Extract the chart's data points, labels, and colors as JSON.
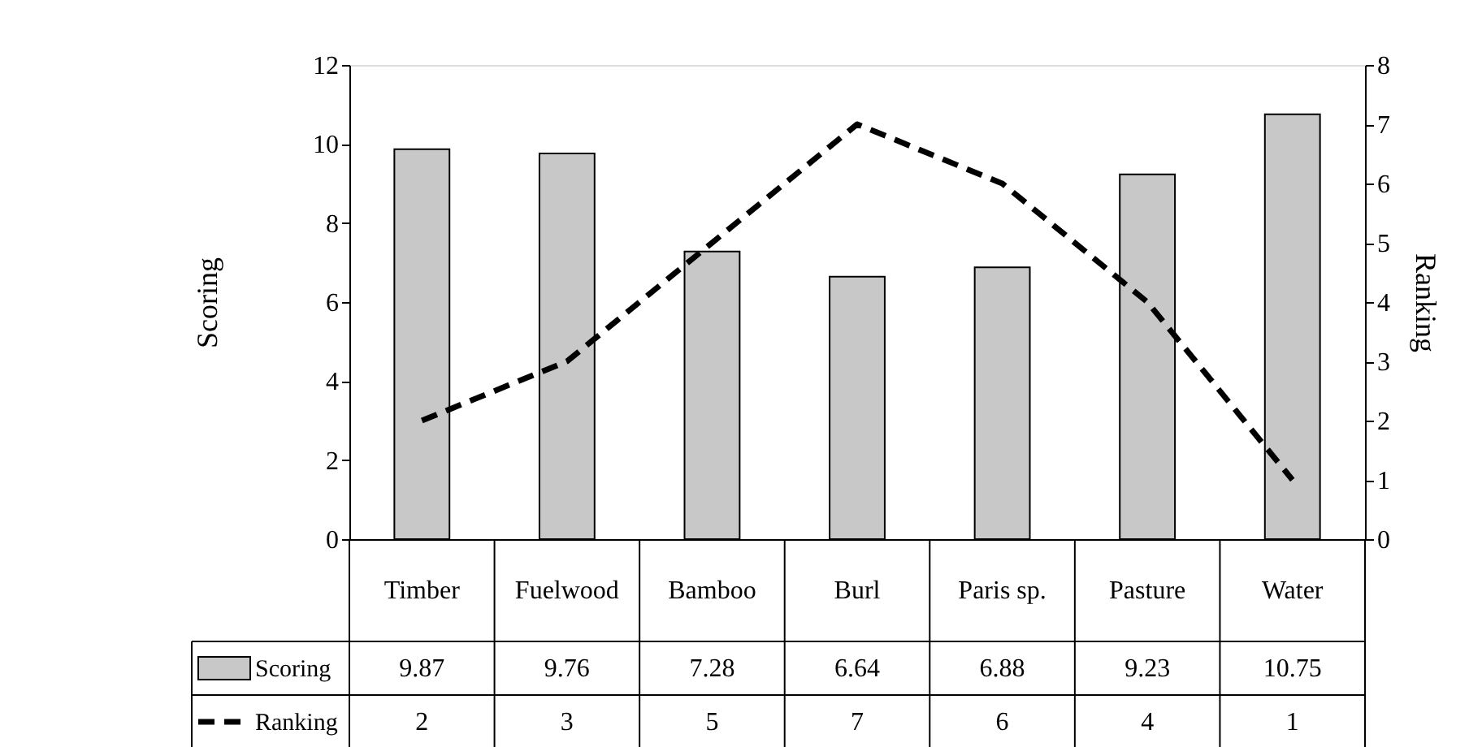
{
  "chart_data": {
    "type": "bar",
    "categories": [
      "Timber",
      "Fuelwood",
      "Bamboo",
      "Burl",
      "Paris sp.",
      "Pasture",
      "Water"
    ],
    "ylabel": "Scoring",
    "y2label": "Ranking",
    "ylim": [
      0,
      12
    ],
    "yticks": [
      0,
      2,
      4,
      6,
      8,
      10,
      12
    ],
    "y2lim": [
      0,
      8
    ],
    "y2ticks": [
      0,
      1,
      2,
      3,
      4,
      5,
      6,
      7,
      8
    ],
    "series": [
      {
        "name": "Scoring",
        "color": "#c8c8c8",
        "values": [
          9.87,
          9.76,
          7.28,
          6.64,
          6.88,
          9.23,
          10.75
        ]
      },
      {
        "name": "Ranking",
        "type": "line",
        "axis": "y2",
        "color": "#000000",
        "line_style": "dashed",
        "values": [
          2,
          3,
          5,
          7,
          6,
          4,
          1
        ]
      }
    ],
    "data_labels": true,
    "legend": "bottom",
    "grid": false
  }
}
